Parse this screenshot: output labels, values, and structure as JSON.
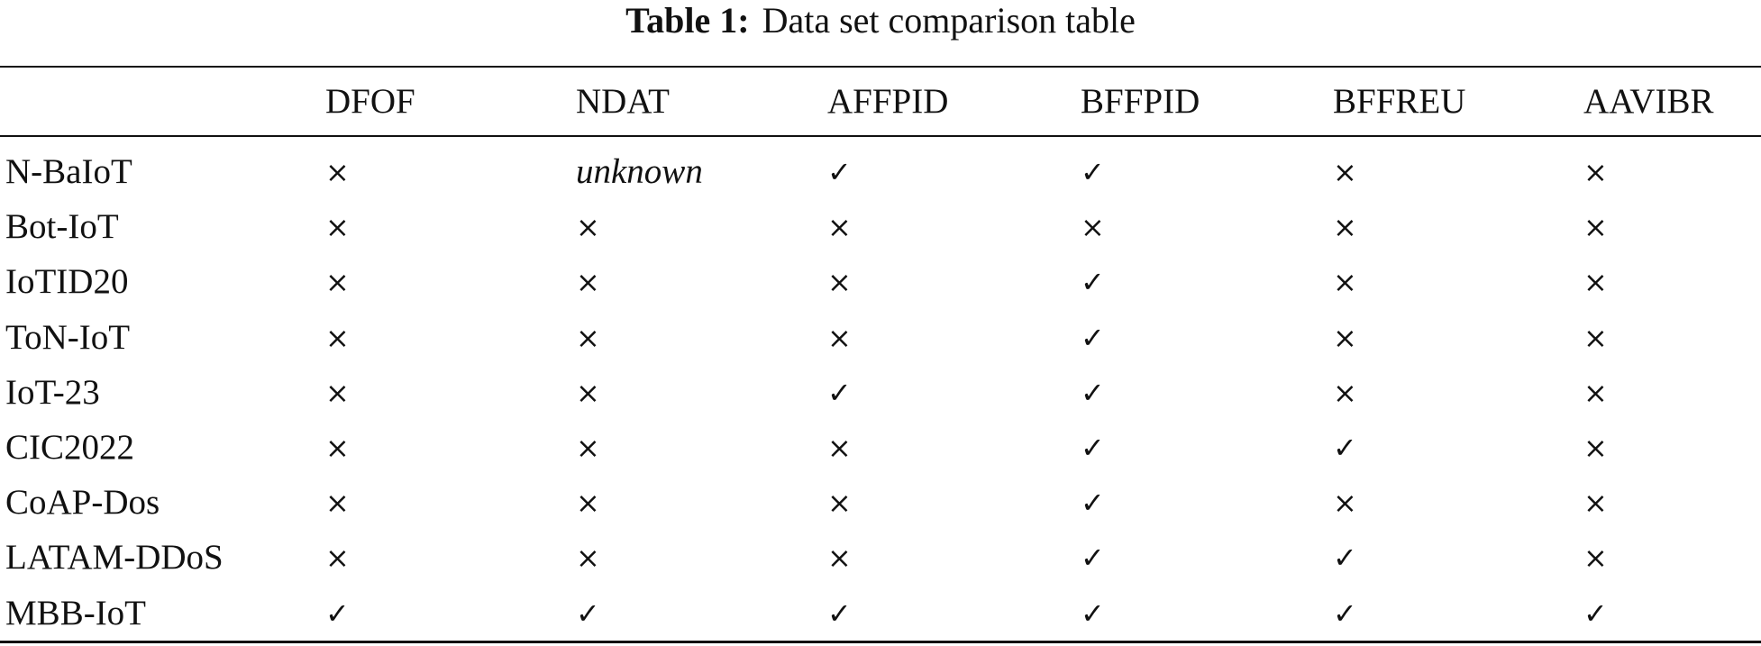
{
  "caption": {
    "label": "Table 1:",
    "text": "Data set comparison table"
  },
  "table": {
    "header": [
      "DFOF",
      "NDAT",
      "AFFPID",
      "BFFPID",
      "BFFREU",
      "AAVIBR"
    ],
    "rows": [
      [
        "N-BaIoT",
        "×",
        "unknown",
        "✓",
        "✓",
        "×",
        "×"
      ],
      [
        "Bot-IoT",
        "×",
        "×",
        "×",
        "×",
        "×",
        "×"
      ],
      [
        "IoTID20",
        "×",
        "×",
        "×",
        "✓",
        "×",
        "×"
      ],
      [
        "ToN-IoT",
        "×",
        "×",
        "×",
        "✓",
        "×",
        "×"
      ],
      [
        "IoT-23",
        "×",
        "×",
        "✓",
        "✓",
        "×",
        "×"
      ],
      [
        "CIC2022",
        "×",
        "×",
        "×",
        "✓",
        "✓",
        "×"
      ],
      [
        "CoAP-Dos",
        "×",
        "×",
        "×",
        "✓",
        "×",
        "×"
      ],
      [
        "LATAM-DDoS",
        "×",
        "×",
        "×",
        "✓",
        "✓",
        "×"
      ],
      [
        "MBB-IoT",
        "✓",
        "✓",
        "✓",
        "✓",
        "✓",
        "✓"
      ]
    ]
  }
}
